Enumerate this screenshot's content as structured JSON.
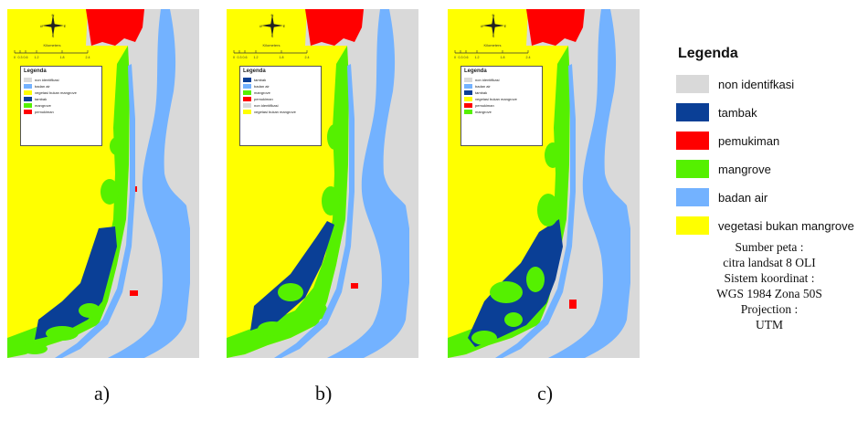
{
  "legend_title": "Legenda",
  "legend": [
    {
      "label": "non identifkasi",
      "color": "#d9d9d9"
    },
    {
      "label": "tambak",
      "color": "#0a3f96"
    },
    {
      "label": "pemukiman",
      "color": "#ff0000"
    },
    {
      "label": "mangrove",
      "color": "#55f000"
    },
    {
      "label": "badan air",
      "color": "#73b2ff"
    },
    {
      "label": "vegetasi bukan mangrove",
      "color": "#ffff00"
    }
  ],
  "source": {
    "line1": "Sumber peta :",
    "line2": "citra landsat 8 OLI",
    "line3": "Sistem koordinat :",
    "line4": "WGS 1984 Zona 50S",
    "line5": "Projection :",
    "line6": "UTM"
  },
  "panels": [
    {
      "caption": "a)",
      "inset_title": "Legenda",
      "inset_items": [
        {
          "label": "non identifikasi",
          "color": "#d9d9d9"
        },
        {
          "label": "badan air",
          "color": "#73b2ff"
        },
        {
          "label": "vegetasi bukan mangrove",
          "color": "#ffff00"
        },
        {
          "label": "tambak",
          "color": "#0a3f96"
        },
        {
          "label": "mangrove",
          "color": "#55f000"
        },
        {
          "label": "pemukiman",
          "color": "#ff0000"
        }
      ]
    },
    {
      "caption": "b)",
      "inset_title": "Legenda",
      "inset_items": [
        {
          "label": "tambak",
          "color": "#0a3f96"
        },
        {
          "label": "badan air",
          "color": "#73b2ff"
        },
        {
          "label": "mangrove",
          "color": "#55f000"
        },
        {
          "label": "pemukiman",
          "color": "#ff0000"
        },
        {
          "label": "non identifikasi",
          "color": "#d9d9d9"
        },
        {
          "label": "vegetasi bukan mangrove",
          "color": "#ffff00"
        }
      ]
    },
    {
      "caption": "c)",
      "inset_title": "Legenda",
      "inset_items": [
        {
          "label": "non identifikasi",
          "color": "#d9d9d9"
        },
        {
          "label": "badan air",
          "color": "#73b2ff"
        },
        {
          "label": "tambak",
          "color": "#0a3f96"
        },
        {
          "label": "vegetasi bukan mangrove",
          "color": "#ffff00"
        },
        {
          "label": "pemukiman",
          "color": "#ff0000"
        },
        {
          "label": "mangrove",
          "color": "#55f000"
        }
      ]
    }
  ],
  "scale_ticks": [
    "0",
    "0.3",
    "0.6",
    "1.2",
    "1.8",
    "2.4"
  ],
  "scale_unit": "Kilometers",
  "compass_letters": {
    "n": "N",
    "s": "S",
    "e": "E",
    "w": "W"
  }
}
